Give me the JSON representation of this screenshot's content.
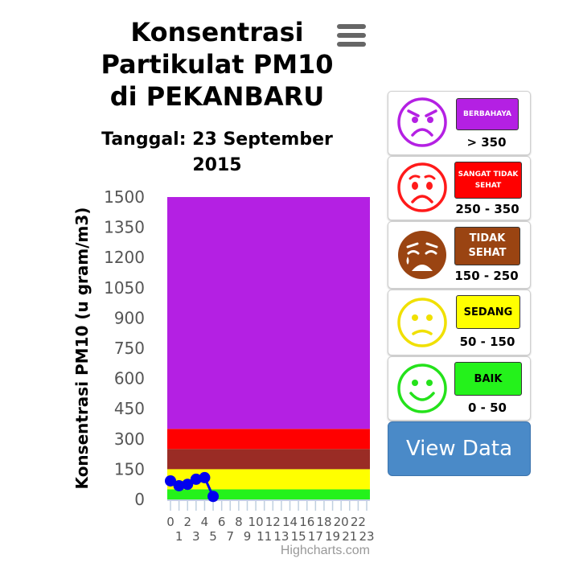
{
  "header": {
    "title_lines": [
      "Konsentrasi",
      "Partikulat PM10",
      "di PEKANBARU"
    ],
    "subtitle_lines": [
      "Tanggal: 23 September",
      "2015"
    ],
    "menu_icon": "hamburger-menu-icon"
  },
  "chart_data": {
    "type": "line",
    "title": "Konsentrasi Partikulat PM10 di PEKANBARU",
    "subtitle": "Tanggal: 23 September 2015",
    "ylabel": "Konsentrasi PM10 (u gram/m3)",
    "xlabel": "",
    "ylim": [
      0,
      1500
    ],
    "yticks": [
      0,
      150,
      300,
      450,
      600,
      750,
      900,
      1050,
      1200,
      1350,
      1500
    ],
    "xlim": [
      0,
      23
    ],
    "xticks": [
      0,
      1,
      2,
      3,
      4,
      5,
      6,
      7,
      8,
      9,
      10,
      11,
      12,
      13,
      14,
      15,
      16,
      17,
      18,
      19,
      20,
      21,
      22,
      23
    ],
    "grid": false,
    "series": [
      {
        "values": [
          {
            "x": 0,
            "y": 92
          },
          {
            "x": 1,
            "y": 68
          },
          {
            "x": 2,
            "y": 75
          },
          {
            "x": 3,
            "y": 100
          },
          {
            "x": 4,
            "y": 108
          },
          {
            "x": 5,
            "y": 15
          }
        ]
      }
    ],
    "bands": [
      {
        "from": 0,
        "to": 50,
        "color": "#24f21b"
      },
      {
        "from": 50,
        "to": 150,
        "color": "#ffff00"
      },
      {
        "from": 150,
        "to": 250,
        "color": "#9a2c25"
      },
      {
        "from": 250,
        "to": 350,
        "color": "#ff0000"
      },
      {
        "from": 350,
        "to": 1500,
        "color": "#b420e3"
      }
    ],
    "line_color": "#0000ee",
    "credits": "Highcharts.com"
  },
  "legend": [
    {
      "label": "BERBAHAYA",
      "range": "> 350",
      "color": "#b420e3",
      "face_color": "#b420e3",
      "face": "angry-face-icon"
    },
    {
      "label": "SANGAT TIDAK SEHAT",
      "range": "250 - 350",
      "color": "#ff0000",
      "face_color": "#ff1a1a",
      "face": "frowning-face-icon"
    },
    {
      "label": "TIDAK SEHAT",
      "range": "150 - 250",
      "color": "#9a4412",
      "face_color": "#9a4412",
      "face": "crying-face-icon"
    },
    {
      "label": "SEDANG",
      "range": "50 - 150",
      "color": "#ffff00",
      "face_color": "#f0e000",
      "face": "neutral-face-icon"
    },
    {
      "label": "BAIK",
      "range": "0 - 50",
      "color": "#24f21b",
      "face_color": "#24e21b",
      "face": "smiling-face-icon"
    }
  ],
  "view_button": {
    "label": "View Data"
  }
}
